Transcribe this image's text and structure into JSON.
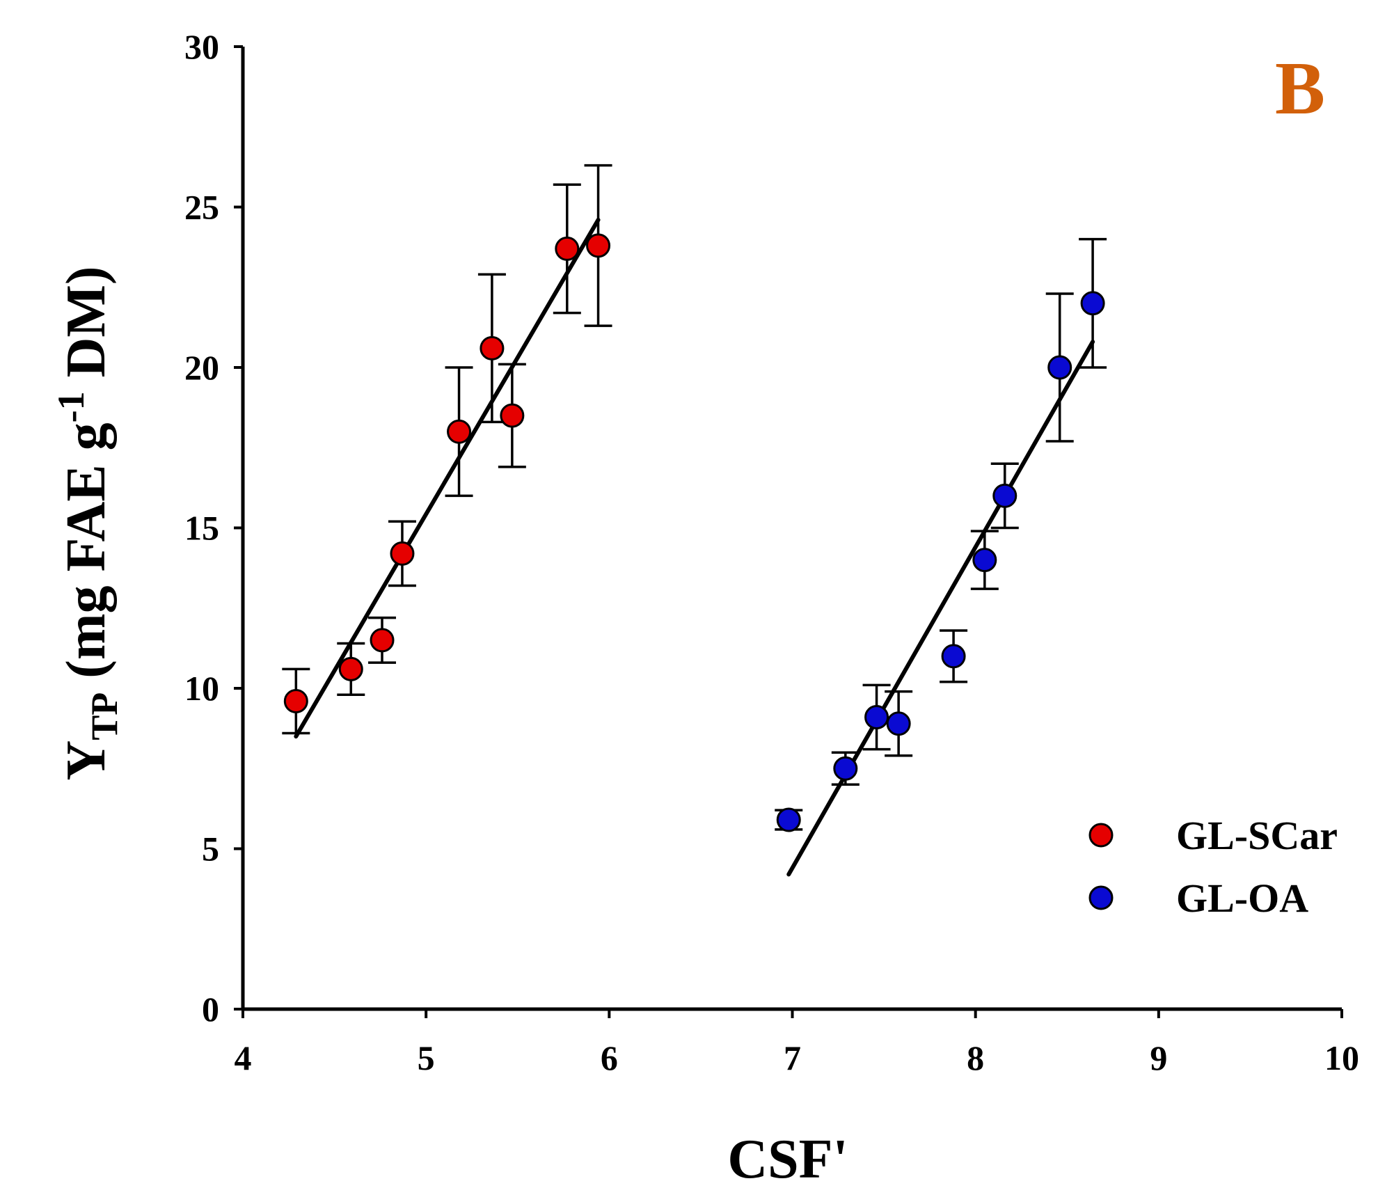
{
  "chart_data": {
    "type": "scatter",
    "panel_label": "B",
    "panel_label_color": "#D2600A",
    "xlabel": "CSF'",
    "ylabel": {
      "main": "Y",
      "subscript": "TP",
      "unit_prefix": " (mg FAE g",
      "superscript": "-1",
      "unit_suffix": " DM)"
    },
    "xlim": [
      4,
      10
    ],
    "ylim": [
      0,
      30
    ],
    "x_ticks": [
      "4",
      "5",
      "6",
      "7",
      "8",
      "9",
      "10"
    ],
    "y_ticks": [
      "0",
      "5",
      "10",
      "15",
      "20",
      "25",
      "30"
    ],
    "legend_position": "bottom-right",
    "series": [
      {
        "name": "GL-SCar",
        "color": "#E50000",
        "points": [
          {
            "x": 4.29,
            "y": 9.6,
            "err": 1.0
          },
          {
            "x": 4.59,
            "y": 10.6,
            "err": 0.8
          },
          {
            "x": 4.76,
            "y": 11.5,
            "err": 0.7
          },
          {
            "x": 4.87,
            "y": 14.2,
            "err": 1.0
          },
          {
            "x": 5.18,
            "y": 18.0,
            "err": 2.0
          },
          {
            "x": 5.36,
            "y": 20.6,
            "err": 2.3
          },
          {
            "x": 5.47,
            "y": 18.5,
            "err": 1.6
          },
          {
            "x": 5.77,
            "y": 23.7,
            "err": 2.0
          },
          {
            "x": 5.94,
            "y": 23.8,
            "err": 2.5
          }
        ],
        "fit": {
          "x": [
            4.29,
            5.94
          ],
          "y": [
            8.5,
            24.6
          ]
        }
      },
      {
        "name": "GL-OA",
        "color": "#0A0AD2",
        "points": [
          {
            "x": 6.98,
            "y": 5.9,
            "err": 0.3
          },
          {
            "x": 7.29,
            "y": 7.5,
            "err": 0.5
          },
          {
            "x": 7.46,
            "y": 9.1,
            "err": 1.0
          },
          {
            "x": 7.58,
            "y": 8.9,
            "err": 1.0
          },
          {
            "x": 7.88,
            "y": 11.0,
            "err": 0.8
          },
          {
            "x": 8.05,
            "y": 14.0,
            "err": 0.9
          },
          {
            "x": 8.16,
            "y": 16.0,
            "err": 1.0
          },
          {
            "x": 8.46,
            "y": 20.0,
            "err": 2.3
          },
          {
            "x": 8.64,
            "y": 22.0,
            "err": 2.0
          }
        ],
        "fit": {
          "x": [
            6.98,
            8.64
          ],
          "y": [
            4.2,
            20.8
          ]
        }
      }
    ]
  }
}
